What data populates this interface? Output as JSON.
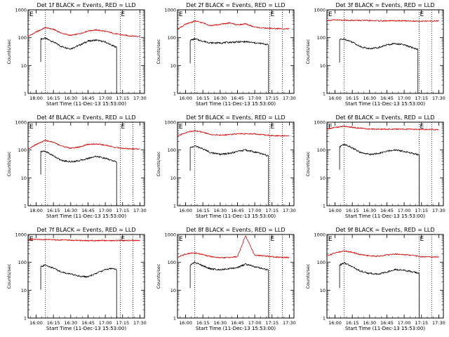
{
  "figure": {
    "layout": "3x3 grid of lightcurve panels",
    "background": "#ffffff"
  },
  "colors": {
    "events": "#000000",
    "lld": "#dd0000",
    "axis": "#000000"
  },
  "panel_labels": {
    "ylabel": "Counts/sec",
    "xlabel": "Start Time (11-Dec-13 15:53:00)",
    "flag_left": "E",
    "flag_right": "E"
  },
  "x_axis": {
    "range_minutes": [
      "15:53",
      "17:34"
    ],
    "ticks": [
      "18:00",
      "16:15",
      "16:30",
      "16:45",
      "17:00",
      "17:15",
      "17:30"
    ],
    "tick_label_alt_first": "16:00"
  },
  "y_axis": {
    "scale": "log",
    "range": [
      1,
      1000
    ],
    "ticks": [
      "1",
      "10",
      "100",
      "1000"
    ]
  },
  "chart_data": [
    {
      "type": "line",
      "title": "Det 1f BLACK = Events, RED = LLD",
      "first_tick_label": "18:00",
      "dotted_lines": [
        "16:08",
        "17:13",
        "17:30"
      ],
      "series": [
        {
          "name": "BLACK = Events",
          "x": [
            "16:04",
            "16:08",
            "16:15",
            "16:22",
            "16:30",
            "16:38",
            "16:45",
            "16:52",
            "17:00",
            "17:06",
            "17:10"
          ],
          "y": [
            90,
            95,
            70,
            48,
            40,
            55,
            75,
            82,
            70,
            52,
            45
          ]
        },
        {
          "name": "RED = LLD",
          "x": [
            "15:53",
            "16:00",
            "16:08",
            "16:15",
            "16:22",
            "16:30",
            "16:38",
            "16:45",
            "16:52",
            "17:00",
            "17:08",
            "17:15",
            "17:22",
            "17:30"
          ],
          "y": [
            110,
            160,
            230,
            200,
            145,
            120,
            140,
            175,
            190,
            170,
            140,
            125,
            115,
            112
          ]
        }
      ]
    },
    {
      "type": "line",
      "title": "Det 2f BLACK = Events, RED = LLD",
      "first_tick_label": "16:00",
      "dotted_lines": [
        "16:08",
        "17:13",
        "17:24"
      ],
      "series": [
        {
          "name": "BLACK = Events",
          "x": [
            "16:04",
            "16:08",
            "16:15",
            "16:22",
            "16:30",
            "16:38",
            "16:45",
            "16:52",
            "17:00",
            "17:08",
            "17:12"
          ],
          "y": [
            80,
            90,
            75,
            65,
            65,
            68,
            70,
            72,
            65,
            60,
            55
          ]
        },
        {
          "name": "RED = LLD",
          "x": [
            "15:53",
            "16:00",
            "16:08",
            "16:15",
            "16:22",
            "16:30",
            "16:38",
            "16:45",
            "16:52",
            "17:00",
            "17:08",
            "17:15",
            "17:22",
            "17:30"
          ],
          "y": [
            210,
            300,
            400,
            340,
            270,
            300,
            340,
            290,
            310,
            240,
            220,
            215,
            210,
            210
          ]
        }
      ]
    },
    {
      "type": "line",
      "title": "Det 3f BLACK = Events, RED = LLD",
      "first_tick_label": "16:00",
      "dotted_lines": [
        "16:08",
        "17:13",
        "17:24"
      ],
      "series": [
        {
          "name": "BLACK = Events",
          "x": [
            "16:04",
            "16:08",
            "16:15",
            "16:22",
            "16:30",
            "16:38",
            "16:45",
            "16:52",
            "17:00",
            "17:06",
            "17:12"
          ],
          "y": [
            85,
            90,
            70,
            48,
            40,
            45,
            55,
            62,
            55,
            45,
            38
          ]
        },
        {
          "name": "RED = LLD",
          "x": [
            "15:53",
            "16:00",
            "16:15",
            "16:30",
            "16:45",
            "17:00",
            "17:15",
            "17:30"
          ],
          "y": [
            420,
            430,
            420,
            410,
            400,
            405,
            390,
            400
          ]
        }
      ]
    },
    {
      "type": "line",
      "title": "Det 4f BLACK = Events, RED = LLD",
      "first_tick_label": "18:00",
      "dotted_lines": [
        "16:08",
        "17:13",
        "17:24"
      ],
      "series": [
        {
          "name": "BLACK = Events",
          "x": [
            "16:04",
            "16:08",
            "16:15",
            "16:22",
            "16:30",
            "16:38",
            "16:45",
            "16:52",
            "17:00",
            "17:06",
            "17:10"
          ],
          "y": [
            88,
            90,
            62,
            42,
            38,
            42,
            50,
            60,
            50,
            42,
            36
          ]
        },
        {
          "name": "RED = LLD",
          "x": [
            "15:53",
            "16:00",
            "16:08",
            "16:15",
            "16:22",
            "16:30",
            "16:38",
            "16:45",
            "16:52",
            "17:00",
            "17:08",
            "17:15",
            "17:22",
            "17:30"
          ],
          "y": [
            110,
            160,
            220,
            190,
            140,
            115,
            130,
            160,
            165,
            150,
            125,
            115,
            110,
            110
          ]
        }
      ]
    },
    {
      "type": "line",
      "title": "Det 5f BLACK = Events, RED = LLD",
      "first_tick_label": "16:00",
      "dotted_lines": [
        "16:08",
        "17:13",
        "17:24"
      ],
      "series": [
        {
          "name": "BLACK = Events",
          "x": [
            "16:04",
            "16:08",
            "16:15",
            "16:22",
            "16:30",
            "16:38",
            "16:45",
            "16:52",
            "17:00",
            "17:08",
            "17:12"
          ],
          "y": [
            120,
            140,
            110,
            80,
            70,
            75,
            90,
            100,
            85,
            70,
            60
          ]
        },
        {
          "name": "RED = LLD",
          "x": [
            "15:53",
            "16:00",
            "16:08",
            "16:15",
            "16:22",
            "16:30",
            "16:45",
            "17:00",
            "17:15",
            "17:30"
          ],
          "y": [
            320,
            420,
            500,
            430,
            360,
            340,
            380,
            380,
            330,
            320
          ]
        }
      ]
    },
    {
      "type": "line",
      "title": "Det 6f BLACK = Events, RED = LLD",
      "first_tick_label": "16:00",
      "dotted_lines": [
        "16:08",
        "17:13",
        "17:24"
      ],
      "series": [
        {
          "name": "BLACK = Events",
          "x": [
            "16:04",
            "16:08",
            "16:15",
            "16:22",
            "16:30",
            "16:38",
            "16:45",
            "16:52",
            "17:00",
            "17:08",
            "17:13"
          ],
          "y": [
            130,
            160,
            120,
            80,
            70,
            75,
            90,
            100,
            90,
            75,
            65
          ]
        },
        {
          "name": "RED = LLD",
          "x": [
            "15:53",
            "16:00",
            "16:08",
            "16:15",
            "16:30",
            "16:45",
            "17:00",
            "17:15",
            "17:30"
          ],
          "y": [
            560,
            650,
            720,
            650,
            560,
            560,
            560,
            550,
            540
          ]
        }
      ]
    },
    {
      "type": "line",
      "title": "Det 7f BLACK = Events, RED = LLD",
      "first_tick_label": "16:00",
      "dotted_lines": [
        "16:08",
        "17:13",
        "17:24"
      ],
      "series": [
        {
          "name": "BLACK = Events",
          "x": [
            "16:04",
            "16:08",
            "16:15",
            "16:22",
            "16:30",
            "16:38",
            "16:45",
            "16:52",
            "17:00",
            "17:06",
            "17:10"
          ],
          "y": [
            70,
            80,
            62,
            45,
            38,
            32,
            30,
            40,
            55,
            62,
            55
          ]
        },
        {
          "name": "RED = LLD",
          "x": [
            "15:53",
            "16:00",
            "16:15",
            "16:30",
            "16:45",
            "17:00",
            "17:15",
            "17:30"
          ],
          "y": [
            640,
            660,
            650,
            620,
            600,
            610,
            600,
            620
          ]
        }
      ]
    },
    {
      "type": "line",
      "title": "Det 8f BLACK = Events, RED = LLD",
      "first_tick_label": "16:00",
      "dotted_lines": [
        "16:08",
        "17:13",
        "17:24"
      ],
      "series": [
        {
          "name": "BLACK = Events",
          "x": [
            "16:04",
            "16:08",
            "16:15",
            "16:22",
            "16:30",
            "16:38",
            "16:45",
            "16:52",
            "17:00",
            "17:08",
            "17:12"
          ],
          "y": [
            80,
            100,
            75,
            58,
            55,
            60,
            65,
            85,
            70,
            58,
            52
          ]
        },
        {
          "name": "RED = LLD",
          "x": [
            "15:53",
            "16:00",
            "16:08",
            "16:15",
            "16:22",
            "16:30",
            "16:38",
            "16:45",
            "16:52",
            "17:00",
            "17:08",
            "17:15",
            "17:22",
            "17:30"
          ],
          "y": [
            150,
            200,
            220,
            190,
            160,
            145,
            150,
            160,
            900,
            180,
            170,
            160,
            150,
            150
          ]
        }
      ]
    },
    {
      "type": "line",
      "title": "Det 9f BLACK = Events, RED = LLD",
      "first_tick_label": "16:00",
      "dotted_lines": [
        "16:08",
        "17:13",
        "17:24"
      ],
      "series": [
        {
          "name": "BLACK = Events",
          "x": [
            "16:04",
            "16:08",
            "16:15",
            "16:22",
            "16:30",
            "16:38",
            "16:45",
            "16:52",
            "17:00",
            "17:08",
            "17:13"
          ],
          "y": [
            80,
            95,
            70,
            48,
            40,
            38,
            45,
            55,
            52,
            45,
            40
          ]
        },
        {
          "name": "RED = LLD",
          "x": [
            "15:53",
            "16:00",
            "16:08",
            "16:15",
            "16:22",
            "16:30",
            "16:38",
            "16:45",
            "16:52",
            "17:00",
            "17:08",
            "17:15",
            "17:22",
            "17:30"
          ],
          "y": [
            170,
            220,
            260,
            230,
            190,
            170,
            165,
            185,
            200,
            190,
            175,
            160,
            155,
            155
          ]
        }
      ]
    }
  ]
}
